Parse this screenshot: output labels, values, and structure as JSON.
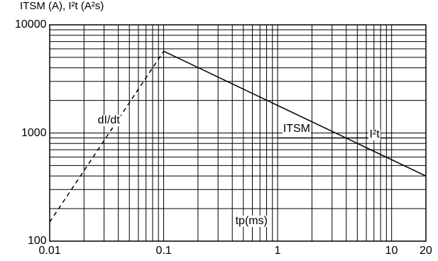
{
  "chart_data": {
    "type": "line",
    "title": "ITSM (A), I²t (A²s)",
    "xlabel": "tp(ms)",
    "ylabel": "",
    "x_scale": "log",
    "y_scale": "log",
    "xlim": [
      0.01,
      20
    ],
    "ylim": [
      100,
      10000
    ],
    "grid": true,
    "x_ticks": [
      {
        "value": 0.01,
        "label": "0.01"
      },
      {
        "value": 0.1,
        "label": "0.1"
      },
      {
        "value": 1,
        "label": "1"
      },
      {
        "value": 10,
        "label": "10"
      },
      {
        "value": 20,
        "label": "20"
      }
    ],
    "y_ticks": [
      {
        "value": 100,
        "label": "100"
      },
      {
        "value": 1000,
        "label": "1000"
      },
      {
        "value": 10000,
        "label": "10000"
      }
    ],
    "series": [
      {
        "name": "dI/dt",
        "style": "dashed",
        "x": [
          0.01,
          0.1
        ],
        "y": [
          150,
          5700
        ]
      },
      {
        "name": "ITSM",
        "style": "solid",
        "x": [
          0.1,
          20
        ],
        "y": [
          5700,
          400
        ]
      },
      {
        "name": "I²t",
        "style": "solid",
        "x": [
          1,
          10
        ],
        "y": [
          900,
          900
        ]
      }
    ],
    "annotations": [
      {
        "text": "dI/dt",
        "x": 0.026,
        "y": 1300
      },
      {
        "text": "ITSM",
        "x": 1.1,
        "y": 1090
      },
      {
        "text": "I²t",
        "x": 6.3,
        "y": 960
      },
      {
        "text": "tp(ms)",
        "x": 0.42,
        "y": 152
      }
    ]
  }
}
